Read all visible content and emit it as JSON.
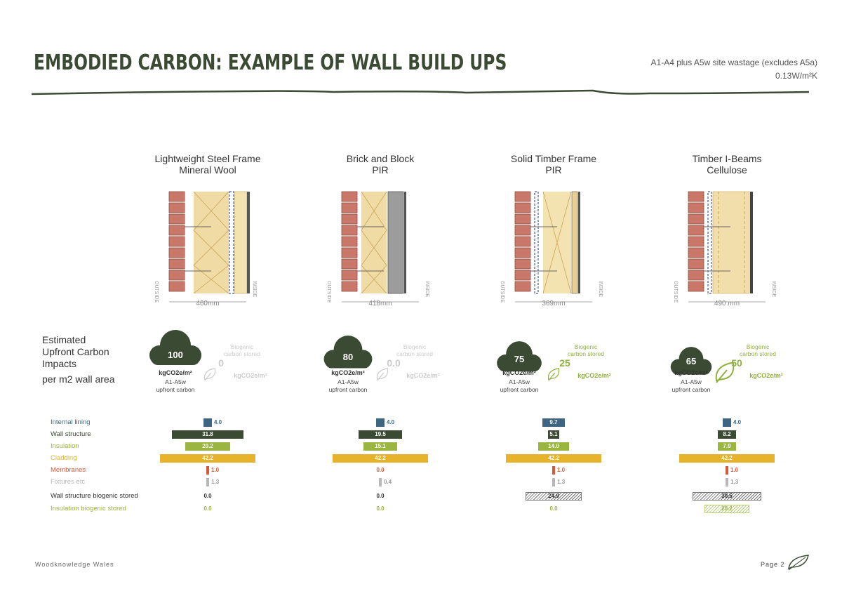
{
  "header": {
    "title": "EMBODIED CARBON: EXAMPLE OF WALL BUILD UPS",
    "scope_note": "A1-A4 plus A5w site wastage (excludes  A5a)",
    "u_value": "0.13W/m²K"
  },
  "side_labels": {
    "impacts": [
      "Estimated",
      "Upfront Carbon",
      "Impacts"
    ],
    "per_area": "per m2 wall area"
  },
  "diagram_labels": {
    "outside": "OUTSIDE",
    "inside": "INSIDE"
  },
  "columns": [
    {
      "title": [
        "Lightweight Steel Frame",
        "Mineral Wool"
      ],
      "thickness": "460mm",
      "upfront": "100",
      "unit": "kgCO2e/m²",
      "stage": [
        "A1-A5w",
        "upfront carbon"
      ],
      "biogenic_label": [
        "Biogenic",
        "carbon stored"
      ],
      "biogenic_value": "0",
      "biogenic_unit": "kgCO2e/m²",
      "biogenic_active": false
    },
    {
      "title": [
        "Brick and Block",
        "PIR"
      ],
      "thickness": "418mm",
      "upfront": "80",
      "unit": "kgCO2e/m²",
      "stage": [
        "A1-A5w",
        "upfront carbon"
      ],
      "biogenic_label": [
        "Biogenic",
        "carbon stored"
      ],
      "biogenic_value": "0.0",
      "biogenic_unit": "kgCO2e/m²",
      "biogenic_active": false
    },
    {
      "title": [
        "Solid Timber Frame",
        "PIR"
      ],
      "thickness": "369mm",
      "upfront": "75",
      "unit": "kgCO2e/m²",
      "stage": [
        "A1-A5w",
        "upfront carbon"
      ],
      "biogenic_label": [
        "Biogenic",
        "carbon stored"
      ],
      "biogenic_value": "25",
      "biogenic_unit": "kgCO2e/m²",
      "biogenic_active": true
    },
    {
      "title": [
        "Timber I-Beams",
        "Cellulose"
      ],
      "thickness": "490 mm",
      "upfront": "65",
      "unit": "kgCO2e/m²",
      "stage": [
        "A1-A5w",
        "upfront carbon"
      ],
      "biogenic_label": [
        "Biogenic",
        "carbon stored"
      ],
      "biogenic_value": "50",
      "biogenic_unit": "kgCO2e/m²",
      "biogenic_active": true
    }
  ],
  "chart_data": {
    "type": "bar",
    "categories": [
      "Internal lining",
      "Wall structure",
      "Insulation",
      "Cladding",
      "Membranes",
      "Fixtures etc",
      "Wall structure biogenic stored",
      "Insulation biogenic stored"
    ],
    "category_colors": [
      "#3e6680",
      "#3b4a33",
      "#9ab540",
      "#e6b32a",
      "#d65a3a",
      "#b8b8b8",
      "#333333",
      "#9ab540"
    ],
    "series": [
      {
        "name": "Lightweight Steel Frame Mineral Wool",
        "values": [
          "4.0",
          "31.8",
          "20.2",
          "42.2",
          "1.0",
          "1.3",
          "0.0",
          "0.0"
        ]
      },
      {
        "name": "Brick and Block PIR",
        "values": [
          "4.0",
          "19.5",
          "15.1",
          "42.2",
          "0.0",
          "0.4",
          "0.0",
          "0.0"
        ]
      },
      {
        "name": "Solid Timber Frame PIR",
        "values": [
          "9.7",
          "5.1",
          "14.0",
          "42.2",
          "1.0",
          "1.3",
          "24.9",
          "0.0"
        ]
      },
      {
        "name": "Timber I-Beams Cellulose",
        "values": [
          "4.0",
          "8.2",
          "7.9",
          "42.2",
          "1.0",
          "1.3",
          "30.5",
          "20.2"
        ]
      }
    ],
    "unit": "kgCO2e/m²"
  },
  "footer": {
    "org": "Woodknowledge Wales",
    "page": "Page 2"
  },
  "colors": {
    "brand_green": "#3b4a33",
    "accent_green": "#8fb03e",
    "muted": "#cccccc"
  }
}
